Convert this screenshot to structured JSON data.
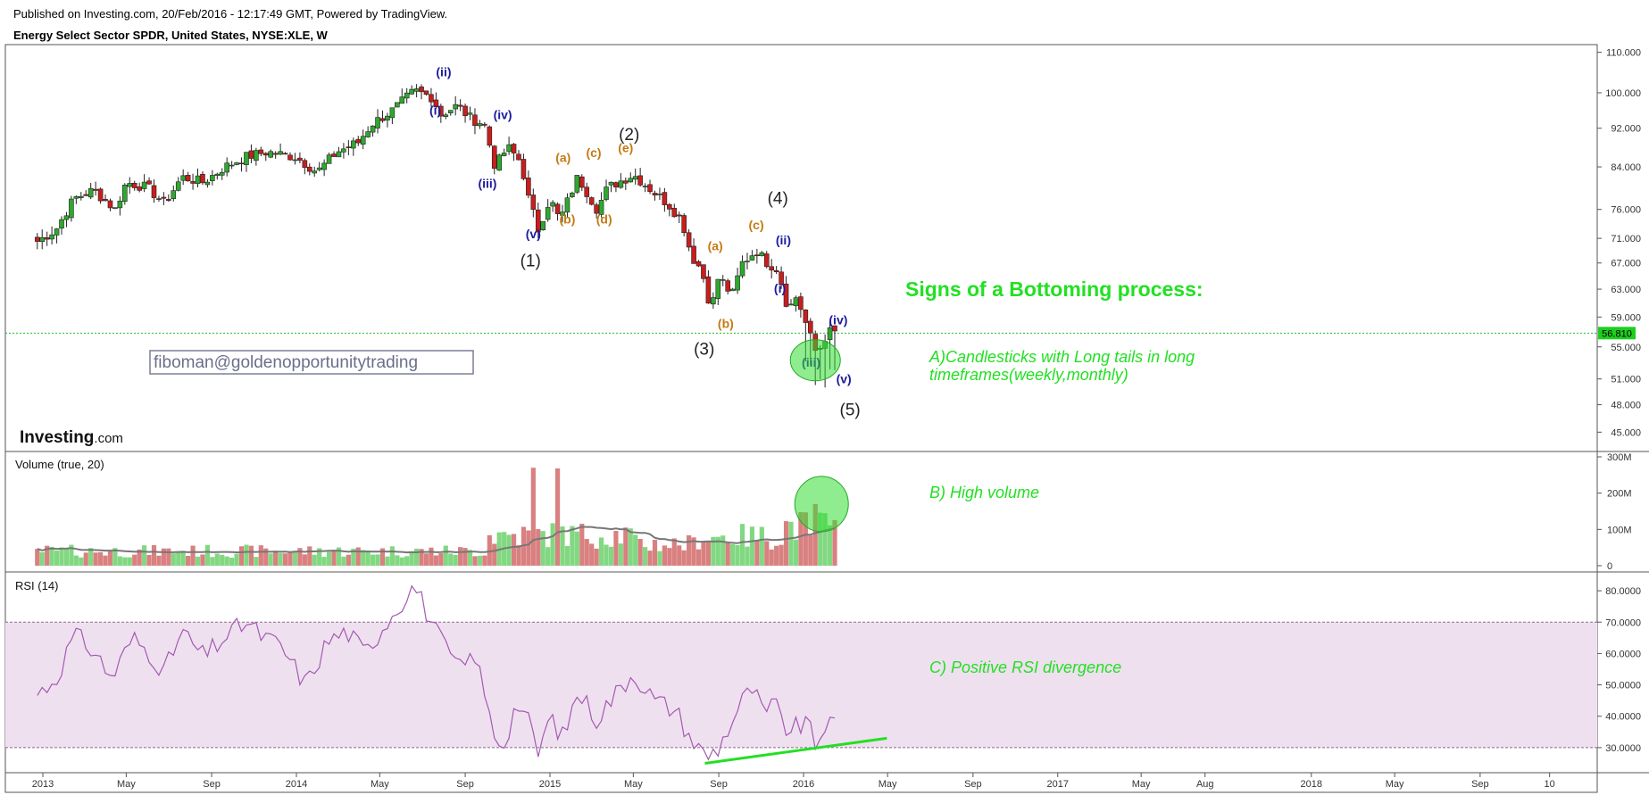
{
  "header": {
    "published": "Published on Investing.com, 20/Feb/2016 - 12:17:49 GMT, Powered by TradingView.",
    "instrument": "Energy Select Sector SPDR, United States, NYSE:XLE, W"
  },
  "watermark": {
    "email": "fiboman@goldenopportunitytrading",
    "logo_bold": "Investing",
    "logo_tail": ".com"
  },
  "colors": {
    "up": "#2fa82f",
    "down": "#c81e1e",
    "vol_up": "#82d882",
    "vol_down": "#d98080",
    "rsi_line": "#a35ab0",
    "rsi_band": "#efe0f0",
    "annot_green": "#22e022",
    "wave_blue": "#1c1c9e",
    "wave_orange": "#c47a14",
    "wave_black": "#222222"
  },
  "chart_data": [
    {
      "type": "candlestick",
      "title": "Energy Select Sector SPDR, United States, NYSE:XLE, W",
      "x_ticks": [
        "2013",
        "May",
        "Sep",
        "2014",
        "May",
        "Sep",
        "2015",
        "May",
        "Sep",
        "2016",
        "May",
        "Sep",
        "2017",
        "May",
        "Aug",
        "2018",
        "May",
        "Sep",
        "10"
      ],
      "y_ticks": [
        "45.000",
        "48.000",
        "51.000",
        "55.000",
        "59.000",
        "63.000",
        "67.000",
        "71.000",
        "76.000",
        "84.000",
        "92.000",
        "100.000",
        "110.000"
      ],
      "y_scale": "log",
      "ylim": [
        43,
        112
      ],
      "last_price": "56.810",
      "close_path": [
        [
          "2012-12-24",
          70.5
        ],
        [
          "2013-01-20",
          72.5
        ],
        [
          "2013-02-15",
          78
        ],
        [
          "2013-03-15",
          79.5
        ],
        [
          "2013-04-15",
          76
        ],
        [
          "2013-05-01",
          81
        ],
        [
          "2013-06-01",
          80
        ],
        [
          "2013-06-25",
          77
        ],
        [
          "2013-07-20",
          82
        ],
        [
          "2013-08-20",
          81
        ],
        [
          "2013-09-20",
          84
        ],
        [
          "2013-10-20",
          86
        ],
        [
          "2013-11-20",
          87
        ],
        [
          "2013-12-31",
          86
        ],
        [
          "2014-01-31",
          83
        ],
        [
          "2014-02-28",
          87
        ],
        [
          "2014-03-31",
          89
        ],
        [
          "2014-04-20",
          93
        ],
        [
          "2014-05-20",
          96
        ],
        [
          "2014-06-20",
          100.5
        ],
        [
          "2014-07-15",
          99
        ],
        [
          "2014-07-28",
          95
        ],
        [
          "2014-08-20",
          97
        ],
        [
          "2014-09-10",
          94
        ],
        [
          "2014-09-28",
          93
        ],
        [
          "2014-10-14",
          84
        ],
        [
          "2014-11-01",
          88
        ],
        [
          "2014-11-20",
          85
        ],
        [
          "2014-12-01",
          78
        ],
        [
          "2014-12-15",
          72.5
        ],
        [
          "2015-01-01",
          78
        ],
        [
          "2015-01-15",
          74
        ],
        [
          "2015-02-10",
          82
        ],
        [
          "2015-03-10",
          76
        ],
        [
          "2015-03-25",
          80
        ],
        [
          "2015-05-01",
          82.5
        ],
        [
          "2015-06-01",
          79
        ],
        [
          "2015-06-20",
          77
        ],
        [
          "2015-07-10",
          74
        ],
        [
          "2015-07-24",
          68
        ],
        [
          "2015-08-07",
          66
        ],
        [
          "2015-08-21",
          60
        ],
        [
          "2015-09-01",
          65
        ],
        [
          "2015-09-20",
          62
        ],
        [
          "2015-10-05",
          67
        ],
        [
          "2015-10-25",
          69
        ],
        [
          "2015-11-10",
          67
        ],
        [
          "2015-11-25",
          66
        ],
        [
          "2015-12-10",
          60
        ],
        [
          "2015-12-22",
          62
        ],
        [
          "2016-01-08",
          57
        ],
        [
          "2016-01-20",
          54
        ],
        [
          "2016-02-05",
          57
        ],
        [
          "2016-02-19",
          56.81
        ]
      ],
      "wave_labels": [
        {
          "t": "(ii)",
          "d": "2014-08-01",
          "p": 104,
          "c": "wave_blue"
        },
        {
          "t": "(i)",
          "d": "2014-07-20",
          "p": 95,
          "c": "wave_blue"
        },
        {
          "t": "(iv)",
          "d": "2014-10-25",
          "p": 94,
          "c": "wave_blue"
        },
        {
          "t": "(iii)",
          "d": "2014-10-03",
          "p": 80,
          "c": "wave_blue"
        },
        {
          "t": "(v)",
          "d": "2014-12-08",
          "p": 71,
          "c": "wave_blue"
        },
        {
          "t": "(1)",
          "d": "2014-12-04",
          "p": 66.5,
          "c": "wave_black"
        },
        {
          "t": "(a)",
          "d": "2015-01-20",
          "p": 85,
          "c": "wave_orange"
        },
        {
          "t": "(b)",
          "d": "2015-01-26",
          "p": 73.5,
          "c": "wave_orange"
        },
        {
          "t": "(c)",
          "d": "2015-03-05",
          "p": 86,
          "c": "wave_orange"
        },
        {
          "t": "(d)",
          "d": "2015-03-20",
          "p": 73.5,
          "c": "wave_orange"
        },
        {
          "t": "(e)",
          "d": "2015-04-20",
          "p": 87,
          "c": "wave_orange"
        },
        {
          "t": "(2)",
          "d": "2015-04-25",
          "p": 89.5,
          "c": "wave_black"
        },
        {
          "t": "(a)",
          "d": "2015-08-27",
          "p": 69,
          "c": "wave_orange"
        },
        {
          "t": "(b)",
          "d": "2015-09-11",
          "p": 57.5,
          "c": "wave_orange"
        },
        {
          "t": "(3)",
          "d": "2015-08-11",
          "p": 54,
          "c": "wave_black"
        },
        {
          "t": "(c)",
          "d": "2015-10-25",
          "p": 72.5,
          "c": "wave_orange"
        },
        {
          "t": "(4)",
          "d": "2015-11-25",
          "p": 77,
          "c": "wave_black"
        },
        {
          "t": "(ii)",
          "d": "2015-12-03",
          "p": 70,
          "c": "wave_blue"
        },
        {
          "t": "(i)",
          "d": "2015-11-28",
          "p": 62.5,
          "c": "wave_blue"
        },
        {
          "t": "(iv)",
          "d": "2016-02-20",
          "p": 58,
          "c": "wave_blue"
        },
        {
          "t": "(iii)",
          "d": "2016-01-12",
          "p": 52.5,
          "c": "wave_blue"
        },
        {
          "t": "(v)",
          "d": "2016-02-28",
          "p": 50.5,
          "c": "wave_blue"
        },
        {
          "t": "(5)",
          "d": "2016-03-08",
          "p": 46.8,
          "c": "wave_black"
        }
      ]
    },
    {
      "type": "bar",
      "title": "Volume (true, 20)",
      "y_ticks": [
        "0",
        "100M",
        "200M",
        "300M"
      ],
      "ylim": [
        0,
        300
      ],
      "unit": "M shares (weekly)",
      "typical_2013_2014": 40,
      "peak_2014_12": 270,
      "peak_2015_01": 268,
      "peak_2016_01": 170,
      "sma20_2016_02": 115
    },
    {
      "type": "line",
      "title": "RSI (14)",
      "y_ticks": [
        "30.0000",
        "40.0000",
        "50.0000",
        "60.0000",
        "70.0000",
        "80.0000"
      ],
      "ylim": [
        22,
        86
      ],
      "band": [
        30,
        70
      ],
      "points": [
        [
          "2012-12-24",
          47
        ],
        [
          "2013-01-20",
          52
        ],
        [
          "2013-02-15",
          66
        ],
        [
          "2013-03-15",
          61
        ],
        [
          "2013-04-10",
          52
        ],
        [
          "2013-05-10",
          65
        ],
        [
          "2013-06-05",
          60
        ],
        [
          "2013-06-25",
          54
        ],
        [
          "2013-07-20",
          67
        ],
        [
          "2013-08-20",
          59
        ],
        [
          "2013-09-20",
          65
        ],
        [
          "2013-10-20",
          70
        ],
        [
          "2013-11-10",
          66
        ],
        [
          "2013-12-10",
          62
        ],
        [
          "2014-01-15",
          50
        ],
        [
          "2014-02-15",
          64
        ],
        [
          "2014-03-15",
          67
        ],
        [
          "2014-04-10",
          60
        ],
        [
          "2014-05-10",
          70
        ],
        [
          "2014-06-20",
          82
        ],
        [
          "2014-07-10",
          72
        ],
        [
          "2014-07-30",
          63
        ],
        [
          "2014-08-25",
          55
        ],
        [
          "2014-09-15",
          60
        ],
        [
          "2014-10-10",
          36
        ],
        [
          "2014-10-25",
          30
        ],
        [
          "2014-11-15",
          45
        ],
        [
          "2014-12-01",
          38
        ],
        [
          "2014-12-15",
          28
        ],
        [
          "2015-01-01",
          40
        ],
        [
          "2015-01-20",
          33
        ],
        [
          "2015-02-10",
          48
        ],
        [
          "2015-03-10",
          39
        ],
        [
          "2015-03-25",
          44
        ],
        [
          "2015-05-01",
          54
        ],
        [
          "2015-06-01",
          45
        ],
        [
          "2015-07-01",
          42
        ],
        [
          "2015-07-25",
          32
        ],
        [
          "2015-08-15",
          27
        ],
        [
          "2015-09-01",
          30
        ],
        [
          "2015-10-05",
          45
        ],
        [
          "2015-10-20",
          49
        ],
        [
          "2015-11-05",
          40
        ],
        [
          "2015-11-20",
          44
        ],
        [
          "2015-12-10",
          35
        ],
        [
          "2016-01-05",
          38
        ],
        [
          "2016-01-20",
          30
        ],
        [
          "2016-02-01",
          38
        ],
        [
          "2016-02-10",
          36
        ],
        [
          "2016-02-19",
          39
        ]
      ],
      "divergence_line": [
        [
          "2015-08-12",
          25
        ],
        [
          "2016-04-30",
          33
        ]
      ]
    }
  ],
  "annotations": {
    "headline": "Signs of a Bottoming process:",
    "a_line1": "A)Candlesticks with Long tails in long",
    "a_line2": "timeframes(weekly,monthly)",
    "b": "B) High volume",
    "c": "C) Positive RSI divergence"
  }
}
